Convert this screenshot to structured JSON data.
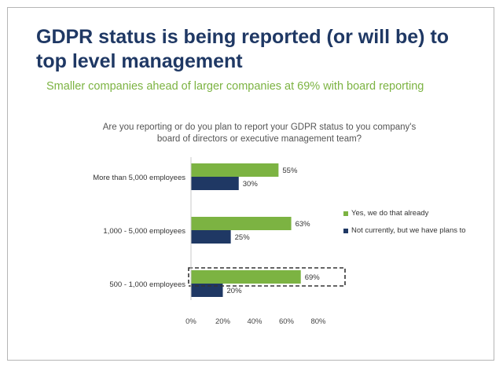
{
  "title": "GDPR status is being reported (or will be) to top level management",
  "subtitle": "Smaller companies ahead of larger companies at 69% with board reporting",
  "chart_data": {
    "type": "bar",
    "orientation": "horizontal",
    "title": "Are you reporting or do you plan to report your GDPR status to you company's board of directors or executive management team?",
    "categories": [
      "More than 5,000 employees",
      "1,000 - 5,000 employees",
      "500 - 1,000 employees"
    ],
    "series": [
      {
        "name": "Yes, we do that already",
        "values": [
          55,
          63,
          69
        ],
        "labels": [
          "55%",
          "63%",
          "69%"
        ],
        "color": "#7cb342"
      },
      {
        "name": "Not currently, but we have plans to",
        "values": [
          30,
          25,
          20
        ],
        "labels": [
          "30%",
          "25%",
          "20%"
        ],
        "color": "#1f3864"
      }
    ],
    "xlim": [
      0,
      80
    ],
    "xticks": [
      0,
      20,
      40,
      60,
      80
    ],
    "xtick_labels": [
      "0%",
      "20%",
      "40%",
      "60%",
      "80%"
    ],
    "highlight": {
      "category": "500 - 1,000 employees",
      "series": "Yes, we do that already",
      "style": "dashed-box"
    },
    "grid": false,
    "legend_position": "right"
  }
}
